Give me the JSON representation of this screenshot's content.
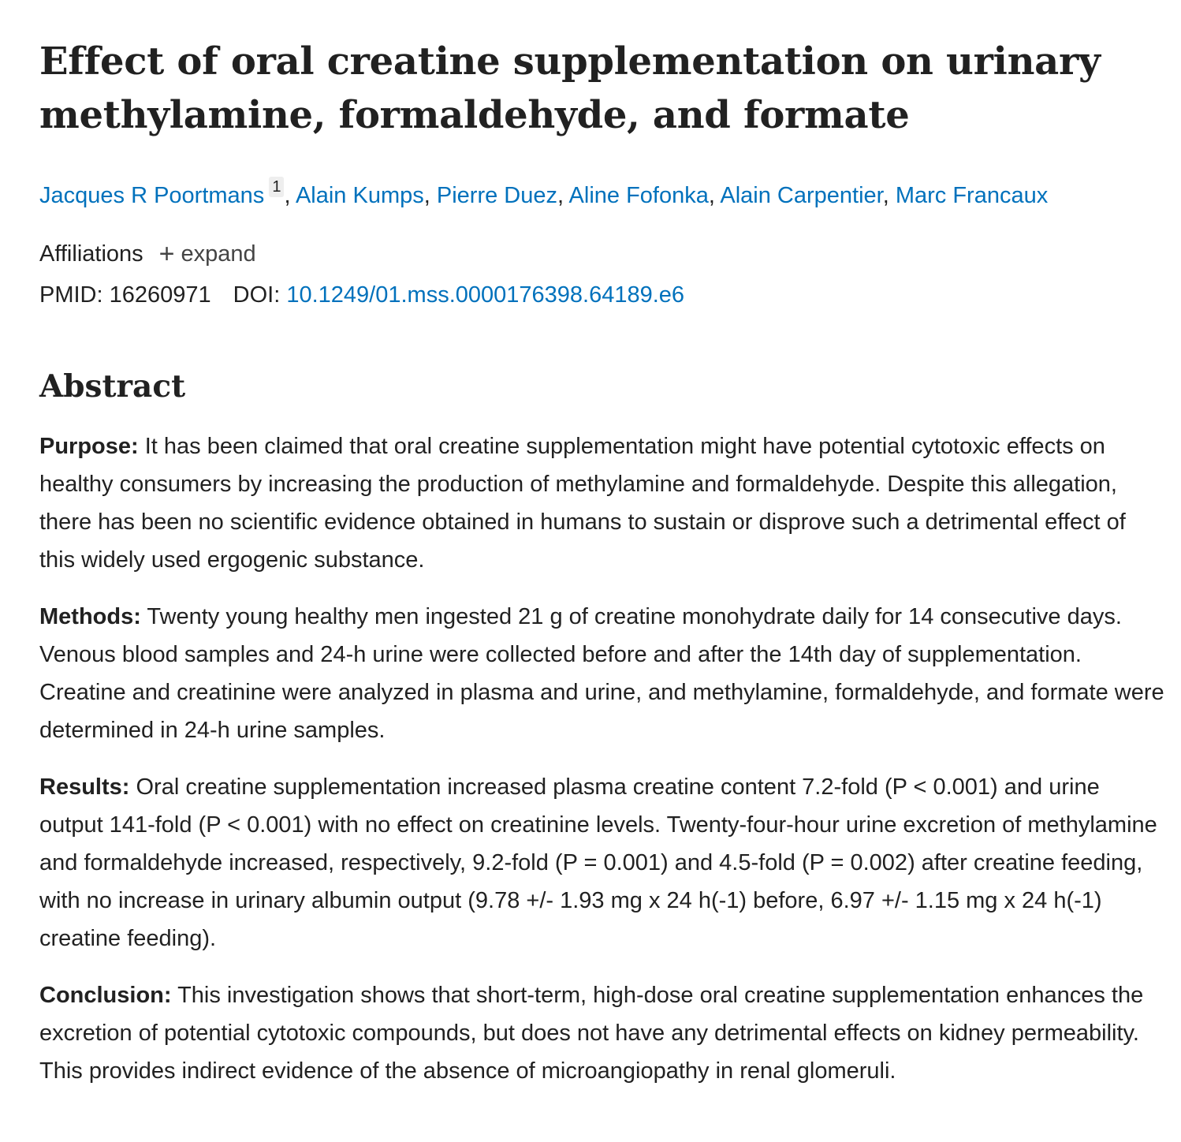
{
  "article": {
    "title": "Effect of oral creatine supplementation on urinary methylamine, formaldehyde, and formate",
    "authors": [
      {
        "name": "Jacques R Poortmans",
        "affiliation_ref": "1"
      },
      {
        "name": "Alain Kumps"
      },
      {
        "name": "Pierre Duez"
      },
      {
        "name": "Aline Fofonka"
      },
      {
        "name": "Alain Carpentier"
      },
      {
        "name": "Marc Francaux"
      }
    ],
    "separator": ", ",
    "affiliations_label": "Affiliations",
    "expand_label": "expand",
    "plus_glyph": "+",
    "pmid_label": "PMID:",
    "pmid": "16260971",
    "doi_label": "DOI:",
    "doi": "10.1249/01.mss.0000176398.64189.e6"
  },
  "abstract": {
    "heading": "Abstract",
    "sections": [
      {
        "label": "Purpose:",
        "text": "It has been claimed that oral creatine supplementation might have potential cytotoxic effects on healthy consumers by increasing the production of methylamine and formaldehyde. Despite this allegation, there has been no scientific evidence obtained in humans to sustain or disprove such a detrimental effect of this widely used ergogenic substance."
      },
      {
        "label": "Methods:",
        "text": "Twenty young healthy men ingested 21 g of creatine monohydrate daily for 14 consecutive days. Venous blood samples and 24-h urine were collected before and after the 14th day of supplementation. Creatine and creatinine were analyzed in plasma and urine, and methylamine, formaldehyde, and formate were determined in 24-h urine samples."
      },
      {
        "label": "Results:",
        "text": "Oral creatine supplementation increased plasma creatine content 7.2-fold (P < 0.001) and urine output 141-fold (P < 0.001) with no effect on creatinine levels. Twenty-four-hour urine excretion of methylamine and formaldehyde increased, respectively, 9.2-fold (P = 0.001) and 4.5-fold (P = 0.002) after creatine feeding, with no increase in urinary albumin output (9.78 +/- 1.93 mg x 24 h(-1) before, 6.97 +/- 1.15 mg x 24 h(-1) creatine feeding)."
      },
      {
        "label": "Conclusion:",
        "text": "This investigation shows that short-term, high-dose oral creatine supplementation enhances the excretion of potential cytotoxic compounds, but does not have any detrimental effects on kidney permeability. This provides indirect evidence of the absence of microangiopathy in renal glomeruli."
      }
    ]
  },
  "colors": {
    "text": "#212121",
    "link": "#0071bc"
  }
}
